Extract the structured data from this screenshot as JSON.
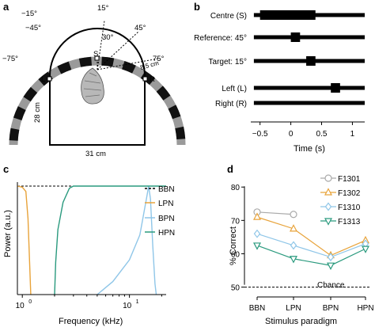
{
  "panels": {
    "a": {
      "label": "a",
      "angles": [
        "−15°",
        "15°",
        "−45°",
        "45°",
        "30°",
        "−75°",
        "75°"
      ],
      "speaker_labels": {
        "S": "S",
        "L": "L",
        "R": "R"
      },
      "distance": "8.5 cm",
      "depth": "28 cm",
      "width": "31 cm"
    },
    "b": {
      "label": "b",
      "rows": [
        "Centre (S)",
        "Reference: 45°",
        "Target: 15°",
        "Left (L)",
        "Right (R)"
      ],
      "xticks": [
        "−0.5",
        "0",
        "0.5",
        "1"
      ],
      "xlabel": "Time (s)"
    },
    "c": {
      "label": "c",
      "ylabel": "Power (a.u.)",
      "xlabel": "Frequency (kHz)",
      "xtick_base": "10",
      "xtick_exps": [
        "0",
        "1"
      ],
      "legend": [
        "BBN",
        "LPN",
        "BPN",
        "HPN"
      ]
    },
    "d": {
      "label": "d",
      "ylabel": "% Correct",
      "xlabel": "Stimulus paradigm",
      "chance_label": "Chance",
      "legend": [
        "F1301",
        "F1302",
        "F1310",
        "F1313"
      ]
    }
  },
  "chart_data": [
    {
      "type": "bar",
      "panel": "b",
      "title": "",
      "xlabel": "Time (s)",
      "xlim": [
        -0.65,
        1.2
      ],
      "xticks": [
        -0.5,
        0,
        0.5,
        1
      ],
      "categories": [
        "Centre (S)",
        "Reference: 45°",
        "Target: 15°",
        "Left (L)",
        "Right (R)"
      ],
      "baseline": [
        -0.6,
        1.2
      ],
      "pulses": [
        {
          "row": "Centre (S)",
          "start": -0.5,
          "end": 0.4
        },
        {
          "row": "Reference: 45°",
          "start": 0.0,
          "end": 0.15
        },
        {
          "row": "Target: 15°",
          "start": 0.25,
          "end": 0.4
        },
        {
          "row": "Left (L)",
          "start": 0.65,
          "end": 0.8
        }
      ]
    },
    {
      "type": "line",
      "panel": "c",
      "xlabel": "Frequency (kHz)",
      "ylabel": "Power (a.u.)",
      "xscale": "log",
      "xlim": [
        0.9,
        22
      ],
      "ylim": [
        0,
        1
      ],
      "grid": false,
      "legend_position": "right",
      "colors": {
        "BBN": "#000000",
        "LPN": "#e8a33a",
        "BPN": "#8fc6e8",
        "HPN": "#2a9a7e"
      },
      "series": [
        {
          "name": "BBN",
          "style": "dashed",
          "points": [
            [
              0.9,
              1.0
            ],
            [
              22,
              1.0
            ]
          ]
        },
        {
          "name": "LPN",
          "points": [
            [
              0.9,
              1.0
            ],
            [
              1.0,
              0.99
            ],
            [
              1.08,
              0.95
            ],
            [
              1.13,
              0.7
            ],
            [
              1.17,
              0.3
            ],
            [
              1.2,
              0.0
            ]
          ]
        },
        {
          "name": "BPN",
          "points": [
            [
              5.0,
              0.0
            ],
            [
              7.0,
              0.12
            ],
            [
              10.0,
              0.32
            ],
            [
              12.5,
              0.55
            ],
            [
              14.5,
              0.9
            ],
            [
              15.1,
              1.0
            ],
            [
              15.7,
              0.88
            ],
            [
              16.5,
              0.45
            ],
            [
              17.3,
              0.1
            ],
            [
              17.8,
              0.0
            ]
          ]
        },
        {
          "name": "HPN",
          "points": [
            [
              2.0,
              0.0
            ],
            [
              2.05,
              0.3
            ],
            [
              2.15,
              0.6
            ],
            [
              2.4,
              0.85
            ],
            [
              2.75,
              0.98
            ],
            [
              3.0,
              1.0
            ],
            [
              22,
              1.0
            ]
          ]
        }
      ]
    },
    {
      "type": "line",
      "panel": "d",
      "categories": [
        "BBN",
        "LPN",
        "BPN",
        "HPN"
      ],
      "xlabel": "Stimulus paradigm",
      "ylabel": "% Correct",
      "ylim": [
        48,
        81
      ],
      "yticks": [
        50,
        60,
        70,
        80
      ],
      "chance": 50,
      "legend_position": "top-right",
      "series": [
        {
          "name": "F1301",
          "marker": "circle",
          "color": "#aaaaaa",
          "values": [
            72.5,
            71.8,
            null,
            null
          ]
        },
        {
          "name": "F1302",
          "marker": "triangle-up",
          "color": "#e8a33a",
          "values": [
            71.0,
            67.5,
            59.5,
            64.0
          ]
        },
        {
          "name": "F1310",
          "marker": "diamond",
          "color": "#8fc6e8",
          "values": [
            66.0,
            62.5,
            59.0,
            63.0
          ]
        },
        {
          "name": "F1313",
          "marker": "triangle-down",
          "color": "#2a9a7e",
          "values": [
            62.5,
            58.5,
            56.5,
            61.5
          ]
        }
      ]
    }
  ]
}
